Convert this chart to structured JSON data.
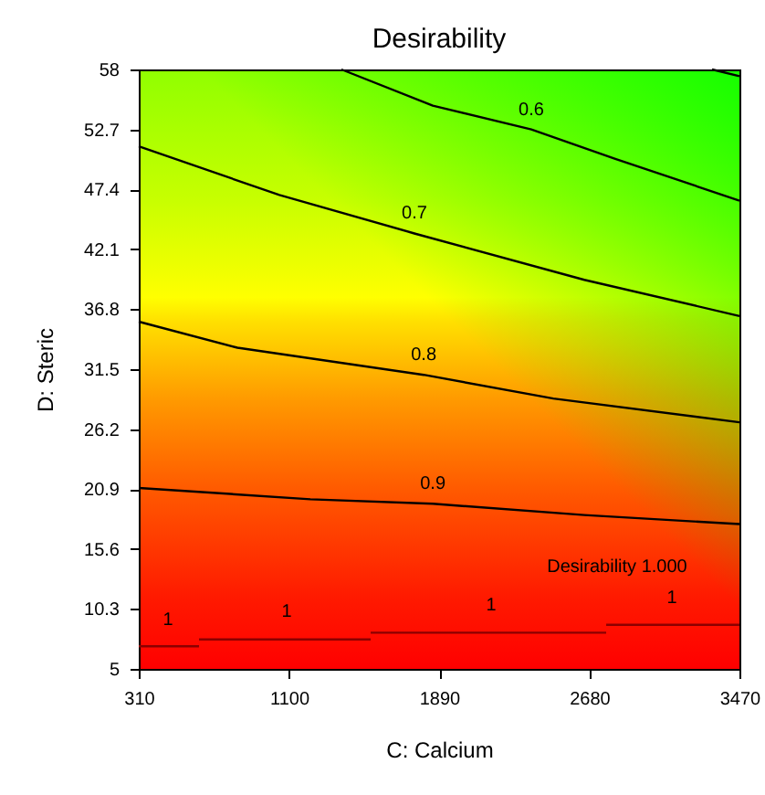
{
  "chart_data": {
    "type": "line",
    "title": "Desirability",
    "xlabel": "C: Calcium",
    "ylabel": "D: Steric",
    "xlim": [
      310,
      3470
    ],
    "ylim": [
      5,
      58
    ],
    "xticks": [
      310,
      1100,
      1890,
      2680,
      3470
    ],
    "yticks": [
      5,
      10.3,
      15.6,
      20.9,
      26.2,
      31.5,
      36.8,
      42.1,
      47.4,
      52.7,
      58
    ],
    "grid": false,
    "legend": false,
    "series": [
      {
        "color": "#000000",
        "x": [
          3326,
          3470
        ],
        "values": [
          58,
          57.4
        ]
      },
      {
        "color": "#000000",
        "x": [
          1376,
          1857,
          2375,
          2817,
          3470
        ],
        "values": [
          58,
          54.8,
          52.7,
          50.1,
          46.4
        ]
      },
      {
        "color": "#000000",
        "x": [
          310,
          1050,
          1760,
          2654,
          3470
        ],
        "values": [
          51.2,
          46.9,
          43.5,
          39.4,
          36.2
        ]
      },
      {
        "color": "#000000",
        "x": [
          310,
          829,
          1809,
          2491,
          3470
        ],
        "values": [
          35.7,
          33.4,
          31.0,
          28.9,
          26.8
        ]
      },
      {
        "color": "#000000",
        "x": [
          310,
          1213,
          1857,
          2654,
          3470
        ],
        "values": [
          21.0,
          20.0,
          19.6,
          18.6,
          17.8
        ]
      },
      {
        "color": "#8b0000",
        "x": [
          310,
          627
        ],
        "values": [
          7.0,
          7.0
        ]
      },
      {
        "color": "#8b0000",
        "x": [
          627,
          1530
        ],
        "values": [
          7.6,
          7.6
        ]
      },
      {
        "color": "#8b0000",
        "x": [
          1530,
          2769
        ],
        "values": [
          8.2,
          8.2
        ]
      },
      {
        "color": "#8b0000",
        "x": [
          2769,
          3470
        ],
        "values": [
          8.9,
          8.9
        ]
      }
    ],
    "annotations": [
      {
        "text": "0.6",
        "x": 2375,
        "y": 52.7
      },
      {
        "text": "0.7",
        "x": 1760,
        "y": 43.5
      },
      {
        "text": "0.8",
        "x": 1809,
        "y": 31.0
      },
      {
        "text": "0.9",
        "x": 1857,
        "y": 19.6
      },
      {
        "text": "1",
        "x": 464,
        "y": 7.6
      },
      {
        "text": "1",
        "x": 1088,
        "y": 8.3
      },
      {
        "text": "1",
        "x": 2164,
        "y": 8.9
      },
      {
        "text": "1",
        "x": 3115,
        "y": 9.5
      },
      "Desirability  1.000"
    ]
  }
}
